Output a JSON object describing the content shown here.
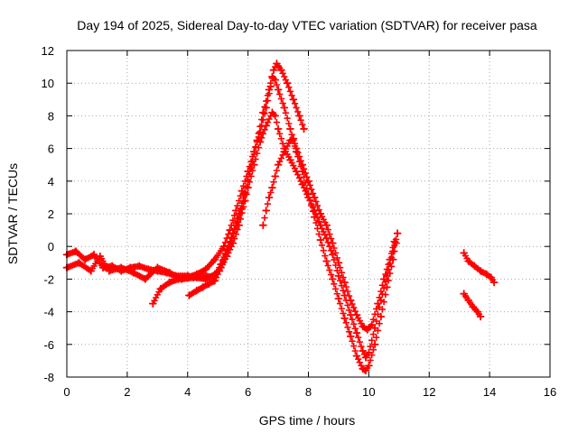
{
  "chart_data": {
    "type": "scatter",
    "title": "Day 194 of 2025, Sidereal Day-to-day VTEC variation (SDTVAR) for receiver pasa",
    "xlabel": "GPS time / hours",
    "ylabel": "SDTVAR / TECUs",
    "xlim": [
      0,
      16
    ],
    "ylim": [
      -8,
      12
    ],
    "x_ticks": [
      "0",
      "2",
      "4",
      "6",
      "8",
      "10",
      "12",
      "14",
      "16"
    ],
    "y_ticks": [
      "-8",
      "-6",
      "-4",
      "-2",
      "0",
      "2",
      "4",
      "6",
      "8",
      "10",
      "12"
    ],
    "grid": true,
    "marker": "+",
    "color": "#ff0000",
    "series": [
      {
        "name": "arc-1",
        "points": [
          [
            0.0,
            -0.5
          ],
          [
            0.3,
            -0.3
          ],
          [
            0.6,
            -0.8
          ],
          [
            0.9,
            -0.5
          ],
          [
            1.2,
            -1.3
          ],
          [
            1.5,
            -1.2
          ],
          [
            1.8,
            -1.5
          ],
          [
            2.1,
            -1.3
          ],
          [
            2.4,
            -1.2
          ],
          [
            2.7,
            -1.4
          ],
          [
            3.0,
            -1.5
          ],
          [
            3.3,
            -1.6
          ],
          [
            3.6,
            -1.8
          ],
          [
            4.0,
            -1.8
          ],
          [
            4.3,
            -1.9
          ],
          [
            4.6,
            -2.0
          ],
          [
            4.9,
            -1.7
          ],
          [
            5.1,
            -1.3
          ],
          [
            5.3,
            -0.6
          ],
          [
            5.5,
            0.2
          ],
          [
            5.7,
            1.3
          ],
          [
            5.9,
            2.8
          ],
          [
            6.0,
            3.6
          ],
          [
            6.2,
            5.0
          ],
          [
            6.4,
            6.4
          ],
          [
            6.6,
            7.4
          ],
          [
            6.8,
            8.2
          ],
          [
            6.9,
            8.0
          ],
          [
            7.0,
            7.2
          ],
          [
            7.2,
            6.0
          ],
          [
            7.4,
            5.3
          ],
          [
            7.6,
            4.6
          ],
          [
            7.8,
            3.8
          ],
          [
            8.0,
            3.0
          ],
          [
            8.2,
            2.2
          ],
          [
            8.4,
            1.3
          ],
          [
            8.6,
            0.5
          ],
          [
            8.8,
            -0.5
          ],
          [
            9.0,
            -1.8
          ],
          [
            9.2,
            -3.0
          ],
          [
            9.4,
            -4.2
          ],
          [
            9.6,
            -5.3
          ],
          [
            9.8,
            -6.4
          ],
          [
            9.9,
            -6.8
          ],
          [
            10.0,
            -6.5
          ],
          [
            10.2,
            -5.0
          ],
          [
            10.4,
            -3.3
          ],
          [
            10.6,
            -1.8
          ],
          [
            10.8,
            -0.3
          ],
          [
            10.95,
            0.8
          ]
        ]
      },
      {
        "name": "arc-2",
        "points": [
          [
            0.0,
            -1.3
          ],
          [
            0.4,
            -1.0
          ],
          [
            0.8,
            -1.5
          ],
          [
            1.1,
            -0.6
          ],
          [
            1.4,
            -1.5
          ],
          [
            1.8,
            -1.3
          ],
          [
            2.2,
            -1.6
          ],
          [
            2.6,
            -2.0
          ],
          [
            3.0,
            -1.3
          ],
          [
            3.4,
            -1.6
          ],
          [
            3.8,
            -2.0
          ],
          [
            4.2,
            -1.9
          ],
          [
            4.6,
            -1.8
          ],
          [
            4.9,
            -1.9
          ],
          [
            5.1,
            -1.1
          ],
          [
            5.3,
            -0.2
          ],
          [
            5.5,
            0.8
          ],
          [
            5.7,
            2.0
          ],
          [
            5.9,
            3.3
          ],
          [
            6.1,
            4.8
          ],
          [
            6.3,
            6.5
          ],
          [
            6.5,
            8.2
          ],
          [
            6.7,
            9.6
          ],
          [
            6.8,
            10.4
          ],
          [
            6.9,
            10.2
          ],
          [
            7.0,
            9.6
          ],
          [
            7.2,
            8.5
          ],
          [
            7.4,
            7.2
          ],
          [
            7.6,
            5.8
          ],
          [
            7.8,
            4.6
          ],
          [
            8.0,
            3.2
          ],
          [
            8.2,
            1.8
          ],
          [
            8.4,
            0.4
          ],
          [
            8.6,
            -0.9
          ],
          [
            8.8,
            -2.0
          ],
          [
            9.0,
            -3.2
          ],
          [
            9.2,
            -4.4
          ],
          [
            9.4,
            -5.5
          ],
          [
            9.6,
            -6.7
          ],
          [
            9.8,
            -7.5
          ],
          [
            9.9,
            -7.6
          ],
          [
            10.0,
            -7.3
          ],
          [
            10.2,
            -6.0
          ],
          [
            10.4,
            -4.3
          ],
          [
            10.6,
            -2.5
          ],
          [
            10.8,
            -0.8
          ],
          [
            10.9,
            0.2
          ]
        ]
      },
      {
        "name": "arc-3",
        "points": [
          [
            2.85,
            -3.5
          ],
          [
            3.1,
            -2.6
          ],
          [
            3.4,
            -2.2
          ],
          [
            3.7,
            -2.0
          ],
          [
            4.0,
            -1.9
          ],
          [
            4.3,
            -1.7
          ],
          [
            4.6,
            -1.4
          ],
          [
            4.9,
            -0.8
          ],
          [
            5.2,
            0.0
          ],
          [
            5.4,
            1.0
          ],
          [
            5.6,
            2.2
          ],
          [
            5.8,
            3.4
          ],
          [
            6.0,
            4.6
          ],
          [
            6.2,
            5.8
          ],
          [
            6.4,
            7.0
          ],
          [
            6.6,
            8.5
          ],
          [
            6.75,
            9.8
          ],
          [
            6.85,
            10.8
          ],
          [
            6.95,
            11.2
          ],
          [
            7.1,
            10.8
          ],
          [
            7.3,
            10.0
          ],
          [
            7.5,
            9.0
          ],
          [
            7.7,
            8.0
          ],
          [
            7.85,
            7.2
          ]
        ]
      },
      {
        "name": "arc-4",
        "points": [
          [
            4.05,
            -3.0
          ],
          [
            4.3,
            -2.7
          ],
          [
            4.5,
            -2.5
          ],
          [
            4.7,
            -2.3
          ],
          [
            4.9,
            -2.1
          ],
          [
            5.05,
            -1.5
          ],
          [
            5.2,
            -0.8
          ],
          [
            5.35,
            0.0
          ],
          [
            5.5,
            0.8
          ],
          [
            5.65,
            1.5
          ],
          [
            5.8,
            2.3
          ],
          [
            5.9,
            3.2
          ]
        ]
      },
      {
        "name": "arc-5",
        "points": [
          [
            6.5,
            1.3
          ],
          [
            6.6,
            2.2
          ],
          [
            6.7,
            3.0
          ],
          [
            6.8,
            3.6
          ],
          [
            6.9,
            4.3
          ],
          [
            7.0,
            5.0
          ],
          [
            7.2,
            5.8
          ],
          [
            7.4,
            6.5
          ],
          [
            7.5,
            6.6
          ],
          [
            7.6,
            6.0
          ],
          [
            7.8,
            5.0
          ],
          [
            8.0,
            4.0
          ],
          [
            8.2,
            3.0
          ],
          [
            8.4,
            2.0
          ],
          [
            8.6,
            1.3
          ],
          [
            8.8,
            0.2
          ],
          [
            9.0,
            -1.0
          ],
          [
            9.2,
            -2.2
          ],
          [
            9.4,
            -3.3
          ],
          [
            9.6,
            -4.2
          ],
          [
            9.8,
            -4.9
          ],
          [
            9.95,
            -5.1
          ],
          [
            10.1,
            -4.8
          ],
          [
            10.3,
            -3.5
          ],
          [
            10.5,
            -2.0
          ],
          [
            10.7,
            -0.8
          ],
          [
            10.85,
            0.3
          ]
        ]
      },
      {
        "name": "arc-6",
        "points": [
          [
            13.15,
            -0.4
          ],
          [
            13.3,
            -0.9
          ],
          [
            13.5,
            -1.2
          ],
          [
            13.7,
            -1.5
          ],
          [
            13.9,
            -1.7
          ],
          [
            14.05,
            -1.9
          ],
          [
            14.15,
            -2.2
          ]
        ]
      },
      {
        "name": "arc-7",
        "points": [
          [
            13.15,
            -2.9
          ],
          [
            13.3,
            -3.3
          ],
          [
            13.45,
            -3.7
          ],
          [
            13.6,
            -4.0
          ],
          [
            13.7,
            -4.3
          ]
        ]
      }
    ]
  }
}
